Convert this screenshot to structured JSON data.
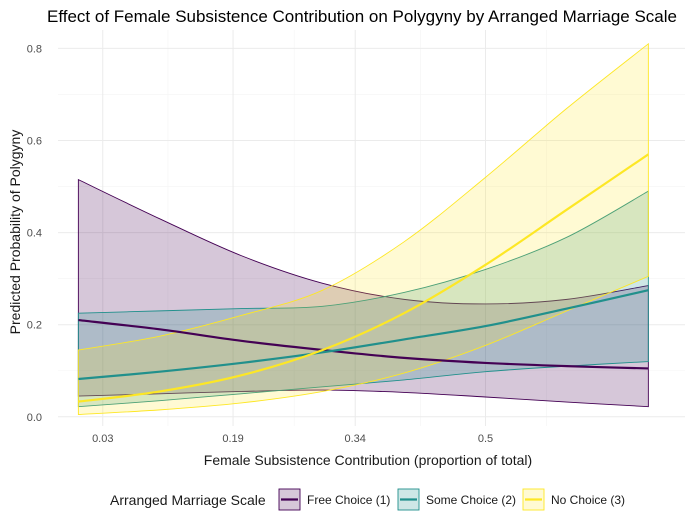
{
  "chart_data": {
    "type": "line",
    "title": "Effect of Female Subsistence Contribution on Polygyny by Arranged Marriage Scale",
    "xlabel": "Female Subsistence Contribution (proportion of total)",
    "ylabel": "Predicted Probability of Polygyny",
    "xlim": [
      -0.025,
      0.745
    ],
    "ylim": [
      -0.02,
      0.84
    ],
    "x_ticks": [
      0.03,
      0.19,
      0.34,
      0.5
    ],
    "x_tick_labels": [
      "0.03",
      "0.19",
      "0.34",
      "0.5"
    ],
    "x_minor_ticks": [
      0.11,
      0.265,
      0.42,
      0.575
    ],
    "y_ticks": [
      0.0,
      0.2,
      0.4,
      0.6,
      0.8
    ],
    "y_tick_labels": [
      "0.0",
      "0.2",
      "0.4",
      "0.6",
      "0.8"
    ],
    "y_minor_ticks": [
      0.1,
      0.3,
      0.5,
      0.7
    ],
    "grid": true,
    "legend_position": "bottom",
    "legend_title": "Arranged Marriage Scale",
    "x": [
      0.0,
      0.1,
      0.2,
      0.3,
      0.4,
      0.5,
      0.6,
      0.7
    ],
    "series": [
      {
        "name": "Free Choice (1)",
        "color": "#440154",
        "fill_opacity": 0.22,
        "values": [
          0.21,
          0.19,
          0.165,
          0.145,
          0.128,
          0.117,
          0.11,
          0.105
        ],
        "lower": [
          0.045,
          0.05,
          0.055,
          0.058,
          0.053,
          0.043,
          0.032,
          0.022
        ],
        "upper": [
          0.515,
          0.43,
          0.35,
          0.29,
          0.255,
          0.245,
          0.255,
          0.285
        ]
      },
      {
        "name": "Some Choice (2)",
        "color": "#21908C",
        "fill_opacity": 0.22,
        "values": [
          0.082,
          0.098,
          0.117,
          0.14,
          0.168,
          0.197,
          0.235,
          0.275
        ],
        "lower": [
          0.022,
          0.035,
          0.05,
          0.065,
          0.08,
          0.098,
          0.11,
          0.12
        ],
        "upper": [
          0.225,
          0.23,
          0.235,
          0.24,
          0.27,
          0.32,
          0.39,
          0.49
        ]
      },
      {
        "name": "No Choice (3)",
        "color": "#FDE725",
        "fill_opacity": 0.2,
        "values": [
          0.033,
          0.055,
          0.09,
          0.145,
          0.225,
          0.33,
          0.45,
          0.57
        ],
        "lower": [
          0.005,
          0.015,
          0.03,
          0.055,
          0.095,
          0.155,
          0.23,
          0.305
        ],
        "upper": [
          0.145,
          0.175,
          0.22,
          0.275,
          0.38,
          0.52,
          0.67,
          0.81
        ]
      }
    ]
  }
}
